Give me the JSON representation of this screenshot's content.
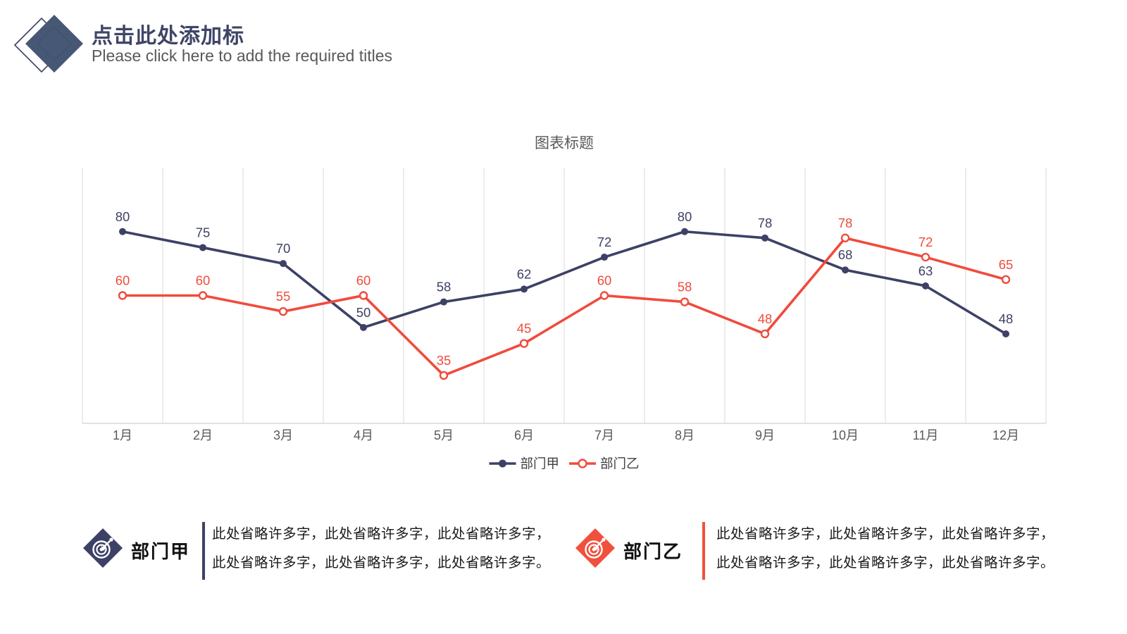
{
  "header": {
    "title": "点击此处添加标",
    "subtitle": "Please click here to add the required titles"
  },
  "chart_data": {
    "type": "line",
    "title": "图表标题",
    "categories": [
      "1月",
      "2月",
      "3月",
      "4月",
      "5月",
      "6月",
      "7月",
      "8月",
      "9月",
      "10月",
      "11月",
      "12月"
    ],
    "series": [
      {
        "name": "部门甲",
        "values": [
          80,
          75,
          70,
          50,
          58,
          62,
          72,
          80,
          78,
          68,
          63,
          48
        ],
        "color": "#3D4166",
        "marker": "filled-circle"
      },
      {
        "name": "部门乙",
        "values": [
          60,
          60,
          55,
          60,
          35,
          45,
          60,
          58,
          48,
          78,
          72,
          65
        ],
        "color": "#F04B3C",
        "marker": "open-circle"
      }
    ],
    "ylim": [
      20,
      100
    ],
    "grid": "vertical-only",
    "gridline_color": "#D9D9D9",
    "axis_label_color": "#595959",
    "title_color": "#595959",
    "show_data_labels": true,
    "legend_position": "bottom"
  },
  "info_blocks": [
    {
      "title": "部门甲",
      "accent": "#3D4166",
      "icon": "target-dart-icon",
      "lines": [
        "此处省略许多字，此处省略许多字，此处省略许多字，",
        "此处省略许多字，此处省略许多字，此处省略许多字。"
      ]
    },
    {
      "title": "部门乙",
      "accent": "#F0503C",
      "icon": "target-dart-icon",
      "lines": [
        "此处省略许多字，此处省略许多字，此处省略许多字，",
        "此处省略许多字，此处省略许多字，此处省略许多字。"
      ]
    }
  ]
}
